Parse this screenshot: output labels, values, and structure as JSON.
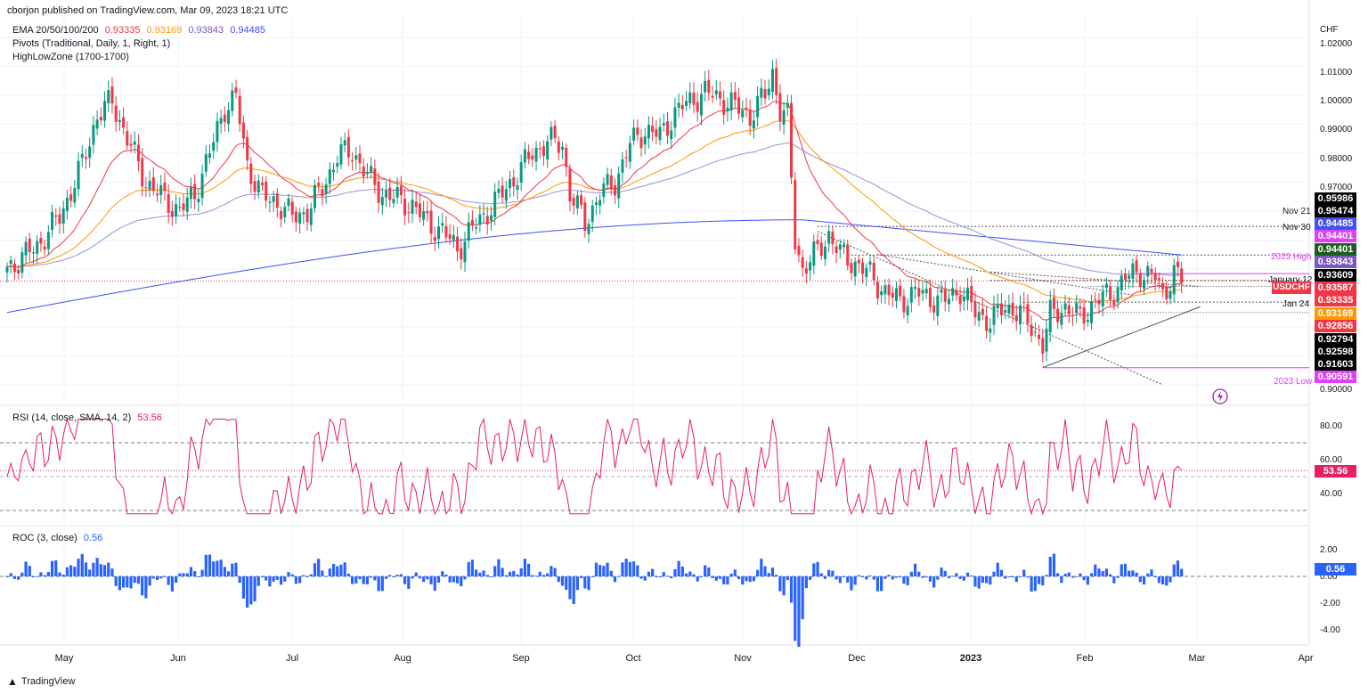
{
  "header": {
    "published": "cborjon published on TradingView.com, Mar 09, 2023 18:21 UTC",
    "ema_label": "EMA 20/50/100/200",
    "ema_values": [
      "0.93335",
      "0.93169",
      "0.93843",
      "0.94485"
    ],
    "pivots_label": "Pivots (Traditional, Daily, 1, Right, 1)",
    "highlow_label": "HighLowZone (1700-1700)",
    "currency": "CHF"
  },
  "colors": {
    "up": "#089981",
    "down": "#f23645",
    "ema20": "#f23645",
    "ema50": "#ff9800",
    "ema100": "#9c8fd6",
    "ema200": "#3f51f5",
    "rsi": "#e91e63",
    "roc": "#2962ff",
    "magenta": "#e040fb"
  },
  "price_tags": [
    {
      "text": "0.95986",
      "bg": "#000000"
    },
    {
      "text": "0.95474",
      "bg": "#000000"
    },
    {
      "text": "0.94485",
      "bg": "#3f51f5"
    },
    {
      "text": "0.94401",
      "bg": "#e040fb"
    },
    {
      "text": "0.94401",
      "bg": "#1b5e20"
    },
    {
      "text": "0.93843",
      "bg": "#7e57c2"
    },
    {
      "text": "0.93609",
      "bg": "#000000"
    },
    {
      "text": "0.93587",
      "bg": "#f23645"
    },
    {
      "text": "0.93335",
      "bg": "#f23645"
    },
    {
      "text": "0.93169",
      "bg": "#ff9800"
    },
    {
      "text": "0.92856",
      "bg": "#f23645"
    },
    {
      "text": "0.92794",
      "bg": "#000000"
    },
    {
      "text": "0.92598",
      "bg": "#000000"
    },
    {
      "text": "0.91603",
      "bg": "#000000"
    },
    {
      "text": "0.90591",
      "bg": "#e040fb"
    }
  ],
  "level_labels": {
    "nov21": "Nov 21",
    "nov30": "Nov 30",
    "high": "2023 High",
    "jan12": "January 12",
    "symbol": "USDCHF",
    "jan24": "Jan 24",
    "low": "2023 Low"
  },
  "price_ticks": [
    "1.02000",
    "1.01000",
    "1.00000",
    "0.99000",
    "0.98000",
    "0.97000",
    "0.90000"
  ],
  "rsi": {
    "label": "RSI (14, close, SMA, 14, 2)",
    "value": "53.56",
    "ticks": [
      "80.00",
      "60.00",
      "40.00"
    ]
  },
  "roc": {
    "label": "ROC (3, close)",
    "value": "0.56",
    "ticks": [
      "2.00",
      "0.00",
      "-2.00",
      "-4.00"
    ]
  },
  "months": [
    "May",
    "Jun",
    "Jul",
    "Aug",
    "Sep",
    "Oct",
    "Nov",
    "Dec",
    "2023",
    "Feb",
    "Mar",
    "Apr"
  ],
  "footer": "TradingView",
  "chart_data": {
    "type": "candlestick",
    "symbol": "USDCHF",
    "timeframe": "Daily",
    "y_range": [
      0.9,
      1.02
    ],
    "anchors": [
      [
        0,
        0.94
      ],
      [
        8,
        0.948
      ],
      [
        14,
        0.958
      ],
      [
        20,
        0.976
      ],
      [
        24,
        0.993
      ],
      [
        28,
        0.998
      ],
      [
        32,
        0.985
      ],
      [
        37,
        0.97
      ],
      [
        42,
        0.964
      ],
      [
        46,
        0.96
      ],
      [
        50,
        0.966
      ],
      [
        54,
        0.98
      ],
      [
        58,
        0.996
      ],
      [
        61,
        0.999
      ],
      [
        64,
        0.976
      ],
      [
        68,
        0.965
      ],
      [
        72,
        0.963
      ],
      [
        76,
        0.958
      ],
      [
        80,
        0.96
      ],
      [
        84,
        0.968
      ],
      [
        88,
        0.979
      ],
      [
        92,
        0.981
      ],
      [
        96,
        0.972
      ],
      [
        100,
        0.966
      ],
      [
        104,
        0.964
      ],
      [
        108,
        0.962
      ],
      [
        112,
        0.956
      ],
      [
        116,
        0.953
      ],
      [
        120,
        0.947
      ],
      [
        124,
        0.954
      ],
      [
        128,
        0.96
      ],
      [
        132,
        0.966
      ],
      [
        136,
        0.973
      ],
      [
        140,
        0.98
      ],
      [
        144,
        0.984
      ],
      [
        148,
        0.983
      ],
      [
        150,
        0.966
      ],
      [
        154,
        0.956
      ],
      [
        158,
        0.966
      ],
      [
        162,
        0.97
      ],
      [
        166,
        0.983
      ],
      [
        170,
        0.988
      ],
      [
        174,
        0.986
      ],
      [
        178,
        0.994
      ],
      [
        182,
        0.998
      ],
      [
        186,
        1.001
      ],
      [
        190,
        0.999
      ],
      [
        194,
        0.996
      ],
      [
        198,
        0.993
      ],
      [
        202,
        1.0
      ],
      [
        204,
        1.008
      ],
      [
        206,
        0.995
      ],
      [
        208,
        0.992
      ],
      [
        210,
        0.95
      ],
      [
        212,
        0.94
      ],
      [
        216,
        0.946
      ],
      [
        219,
        0.952
      ],
      [
        222,
        0.945
      ],
      [
        226,
        0.942
      ],
      [
        230,
        0.938
      ],
      [
        234,
        0.932
      ],
      [
        238,
        0.929
      ],
      [
        242,
        0.932
      ],
      [
        246,
        0.93
      ],
      [
        250,
        0.929
      ],
      [
        254,
        0.933
      ],
      [
        258,
        0.925
      ],
      [
        262,
        0.922
      ],
      [
        266,
        0.927
      ],
      [
        270,
        0.925
      ],
      [
        273,
        0.92
      ],
      [
        276,
        0.914
      ],
      [
        278,
        0.924
      ],
      [
        282,
        0.927
      ],
      [
        286,
        0.923
      ],
      [
        290,
        0.929
      ],
      [
        294,
        0.931
      ],
      [
        298,
        0.937
      ],
      [
        302,
        0.939
      ],
      [
        306,
        0.937
      ],
      [
        308,
        0.931
      ],
      [
        311,
        0.939
      ],
      [
        313,
        0.9359
      ]
    ],
    "ema": [
      {
        "name": "EMA 20",
        "value": 0.93335
      },
      {
        "name": "EMA 50",
        "value": 0.93169
      },
      {
        "name": "EMA 100",
        "value": 0.93843
      },
      {
        "name": "EMA 200",
        "value": 0.94485
      }
    ],
    "levels": [
      {
        "name": "Nov 21",
        "value": 0.95474
      },
      {
        "name": "Nov 30",
        "value": 0.94485
      },
      {
        "name": "2023 High",
        "value": 0.93843
      },
      {
        "name": "January 12",
        "value": 0.93609
      },
      {
        "name": "Last",
        "value": 0.93587
      },
      {
        "name": "Jan 24",
        "value": 0.92856
      },
      {
        "name": "2023 Low",
        "value": 0.90591
      }
    ],
    "rsi_last": 53.56,
    "roc_last": 0.56
  }
}
